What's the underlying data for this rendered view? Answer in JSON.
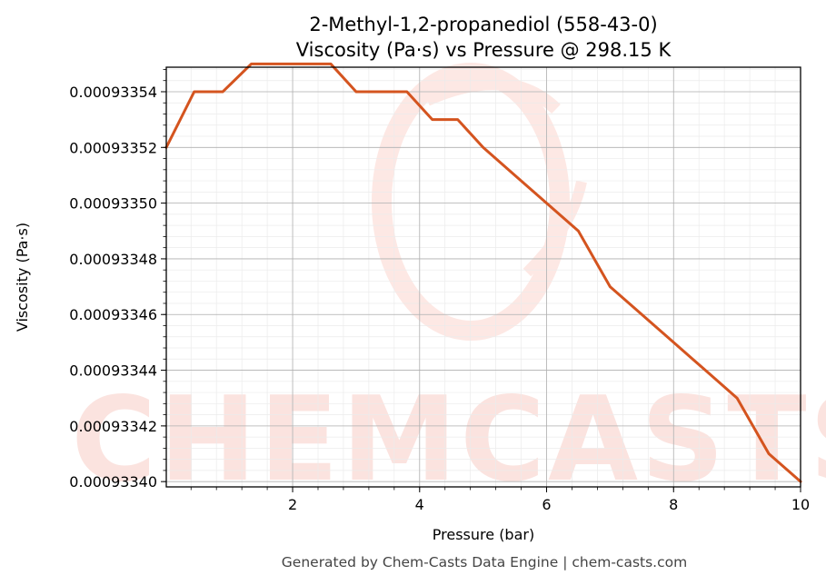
{
  "chart_data": {
    "type": "line",
    "title": "2-Methyl-1,2-propanediol (558-43-0)",
    "subtitle": "Viscosity (Pa·s) vs Pressure @ 298.15 K",
    "xlabel": "Pressure (bar)",
    "ylabel": "Viscosity (Pa·s)",
    "xlim": [
      0.01,
      10
    ],
    "ylim": [
      0.0009333981,
      0.0009335488
    ],
    "xticks": [
      2,
      4,
      6,
      8,
      10
    ],
    "xtick_labels": [
      "2",
      "4",
      "6",
      "8",
      "10"
    ],
    "yticks": [
      0.0009334,
      0.00093342,
      0.00093344,
      0.00093346,
      0.00093348,
      0.0009335,
      0.00093352,
      0.00093354
    ],
    "ytick_labels": [
      "0.00093340",
      "0.00093342",
      "0.00093344",
      "0.00093346",
      "0.00093348",
      "0.00093350",
      "0.00093352",
      "0.00093354"
    ],
    "grid": true,
    "series": [
      {
        "color": "#d4541f",
        "x": [
          0.01,
          0.45,
          0.9,
          1.35,
          1.8,
          2.0,
          2.25,
          2.6,
          3.0,
          3.4,
          3.8,
          4.2,
          4.6,
          5.0,
          5.5,
          6.0,
          6.5,
          7.0,
          7.5,
          8.0,
          8.5,
          9.0,
          9.5,
          10.0
        ],
        "y": [
          0.00093352,
          0.00093354,
          0.00093354,
          0.00093355,
          0.00093355,
          0.00093355,
          0.00093355,
          0.00093355,
          0.00093354,
          0.00093354,
          0.00093354,
          0.00093353,
          0.00093353,
          0.00093352,
          0.00093351,
          0.0009335,
          0.00093349,
          0.00093347,
          0.00093346,
          0.00093345,
          0.00093344,
          0.00093343,
          0.00093341,
          0.0009334
        ]
      }
    ]
  },
  "watermark": "CHEMCASTS",
  "footer": "Generated by Chem-Casts Data Engine | chem-casts.com"
}
